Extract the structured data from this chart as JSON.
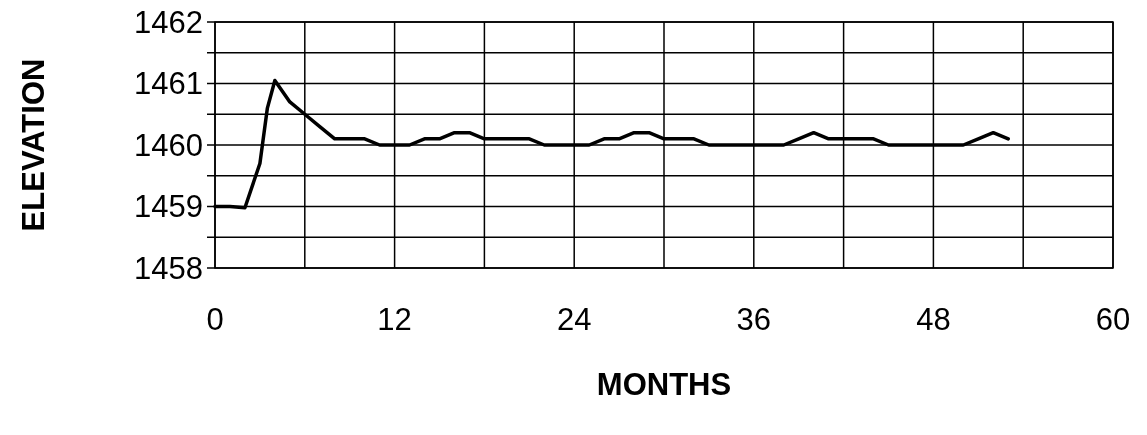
{
  "chart_data": {
    "type": "line",
    "xlabel": "MONTHS",
    "ylabel": "ELEVATION",
    "x": [
      0,
      1,
      2,
      3,
      3.5,
      4,
      5,
      6,
      7,
      8,
      9,
      10,
      11,
      12,
      13,
      14,
      15,
      16,
      17,
      18,
      19,
      20,
      21,
      22,
      23,
      24,
      25,
      26,
      27,
      28,
      29,
      30,
      31,
      32,
      33,
      34,
      35,
      36,
      37,
      38,
      39,
      40,
      41,
      42,
      43,
      44,
      45,
      46,
      47,
      48,
      49,
      50,
      51,
      52,
      53
    ],
    "series": [
      {
        "color": "#000000",
        "values": [
          1459,
          1459,
          1458.98,
          1459.7,
          1460.6,
          1461.05,
          1460.7,
          1460.5,
          1460.3,
          1460.1,
          1460.1,
          1460.1,
          1460,
          1460,
          1460,
          1460.1,
          1460.1,
          1460.2,
          1460.2,
          1460.1,
          1460.1,
          1460.1,
          1460.1,
          1460,
          1460,
          1460,
          1460,
          1460.1,
          1460.1,
          1460.2,
          1460.2,
          1460.1,
          1460.1,
          1460.1,
          1460,
          1460,
          1460,
          1460,
          1460,
          1460,
          1460.1,
          1460.2,
          1460.1,
          1460.1,
          1460.1,
          1460.1,
          1460,
          1460,
          1460,
          1460,
          1460,
          1460,
          1460.1,
          1460.2,
          1460.1
        ]
      }
    ],
    "xlim": [
      0,
      60
    ],
    "xticks": [
      0,
      {
        "value": 6,
        "label": null
      },
      12,
      {
        "value": 18,
        "label": null
      },
      24,
      {
        "value": 30,
        "label": null
      },
      36,
      {
        "value": 42,
        "label": null
      },
      48,
      {
        "value": 54,
        "label": null
      },
      60
    ],
    "ylim": [
      1458,
      1462
    ],
    "yticks": [
      1458,
      {
        "value": 1458.5,
        "label": null
      },
      1459,
      {
        "value": 1459.5,
        "label": null
      },
      1460,
      {
        "value": 1460.5,
        "label": null
      },
      1461,
      {
        "value": 1461.5,
        "label": null
      },
      1462
    ],
    "grid": true,
    "marker": "none",
    "line_style": "solid"
  }
}
